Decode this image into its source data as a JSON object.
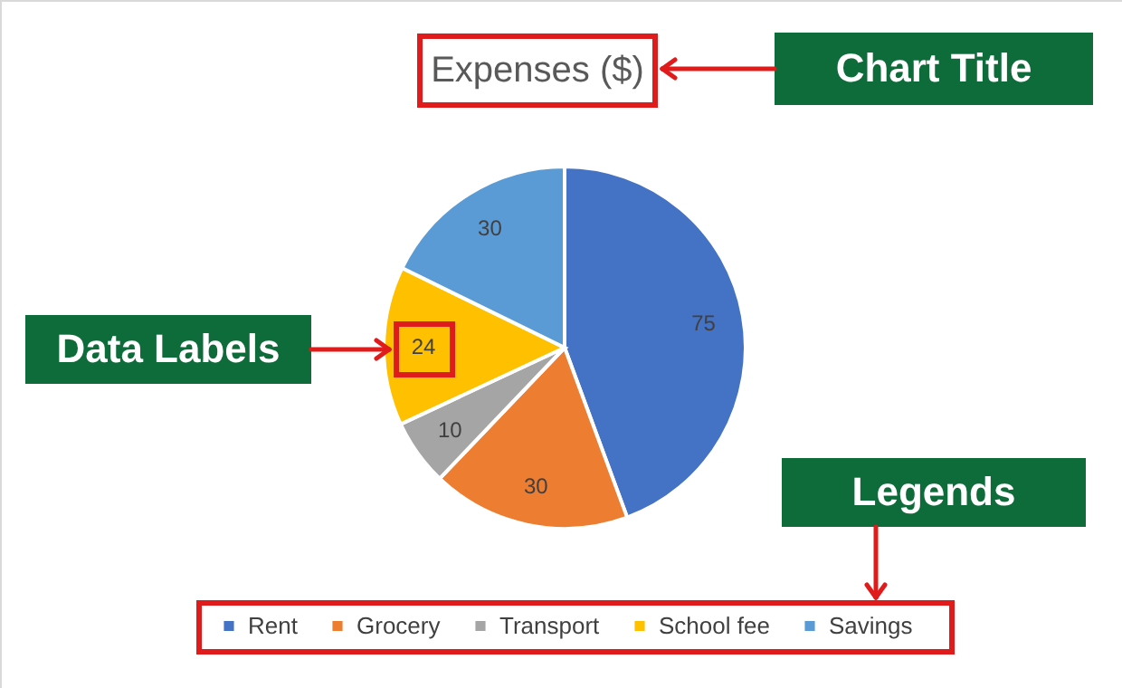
{
  "chart_data": {
    "type": "pie",
    "title": "Expenses ($)",
    "categories": [
      "Rent",
      "Grocery",
      "Transport",
      "School fee",
      "Savings"
    ],
    "values": [
      75,
      30,
      10,
      24,
      30
    ],
    "colors": [
      "#4472c4",
      "#ed7d31",
      "#a5a5a5",
      "#ffc000",
      "#5b9bd5"
    ],
    "data_labels": true,
    "legend": "bottom",
    "annotations": [
      "Chart Title",
      "Data Labels",
      "Legends"
    ]
  }
}
